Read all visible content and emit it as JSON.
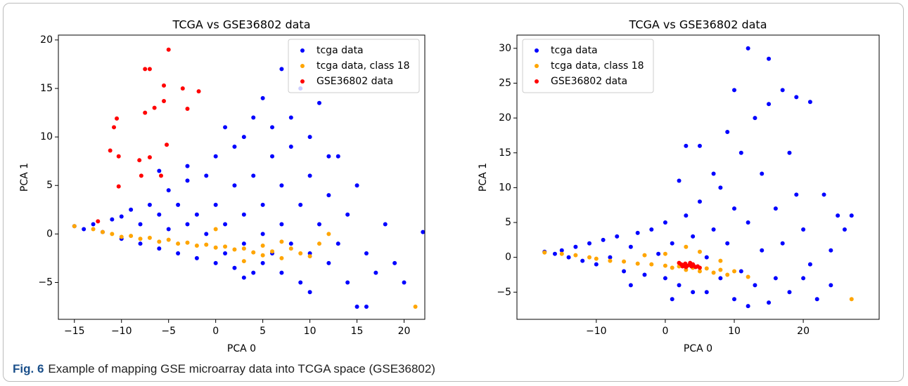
{
  "chart_data": [
    {
      "type": "scatter",
      "title": "TCGA vs GSE36802 data",
      "x_label": "PCA 0",
      "y_label": "PCA 1",
      "xlim": [
        -16.7,
        22.2
      ],
      "ylim": [
        -8.8,
        20.5
      ],
      "xticks": [
        {
          "value": -15,
          "label": "−15"
        },
        {
          "value": -10,
          "label": "−10"
        },
        {
          "value": -5,
          "label": "−5"
        },
        0,
        5,
        10,
        15,
        20
      ],
      "yticks": [
        {
          "value": -5,
          "label": "−5"
        },
        0,
        5,
        10,
        15,
        20
      ],
      "legend": "upper right",
      "series": [
        {
          "name": "tcga data",
          "color": "#0000ff",
          "x": [
            -15,
            -14,
            -13,
            -12,
            -11,
            -10,
            -10,
            -9,
            -8,
            -8,
            -7,
            -6,
            -6,
            -5,
            -5,
            -4,
            -4,
            -3,
            -3,
            -2,
            -2,
            -1,
            -1,
            0,
            0,
            0,
            1,
            1,
            2,
            2,
            2,
            3,
            3,
            3,
            4,
            4,
            4,
            5,
            5,
            5,
            5,
            6,
            6,
            6,
            7,
            7,
            7,
            7,
            8,
            8,
            8,
            9,
            9,
            9,
            10,
            10,
            10,
            11,
            11,
            12,
            12,
            13,
            13,
            14,
            14,
            15,
            15,
            16,
            17,
            18,
            19,
            20,
            22,
            -6,
            -3,
            1,
            3,
            10,
            16,
            12
          ],
          "values": [
            0.8,
            0.5,
            1,
            0.2,
            1.5,
            -0.5,
            1.8,
            2.5,
            -1,
            1,
            3,
            -1.5,
            2,
            0.5,
            4.5,
            -2,
            3,
            1,
            5.5,
            -2.5,
            2,
            6,
            0,
            -3,
            3,
            8,
            1,
            -2,
            5,
            9,
            -3.5,
            2,
            10,
            -1,
            6,
            -4,
            12,
            0,
            3,
            14,
            -3,
            8,
            -2,
            11,
            1,
            17,
            5,
            -4,
            9,
            -1,
            12,
            3,
            15,
            -5,
            6,
            -2,
            10,
            1,
            13.5,
            4,
            -3,
            8,
            -1,
            2,
            -5,
            -7.5,
            5,
            -2,
            -4,
            1,
            -3,
            -5,
            0.2,
            6.5,
            7,
            11,
            -4.5,
            -6,
            -7.5,
            8
          ]
        },
        {
          "name": "tcga data, class 18",
          "color": "#ffa500",
          "x": [
            -15,
            -13,
            -12,
            -11,
            -10,
            -9,
            -8,
            -7,
            -6,
            -5,
            -4,
            -3,
            -2,
            -1,
            0,
            0,
            1,
            2,
            3,
            4,
            5,
            5,
            6,
            7,
            8,
            9,
            10,
            11,
            12,
            21.2,
            7,
            3
          ],
          "values": [
            0.8,
            0.5,
            0.2,
            0,
            -0.3,
            -0.2,
            -0.5,
            -0.4,
            -0.8,
            -0.6,
            -1,
            -0.9,
            -1.2,
            -1.1,
            -1.4,
            0.5,
            -1.3,
            -1.6,
            -1.5,
            -1.9,
            -1.2,
            -2.2,
            -1.8,
            -2.5,
            -1.5,
            -2,
            -2.3,
            -1,
            0,
            -7.5,
            -0.8,
            -2.8
          ]
        },
        {
          "name": "GSE36802 data",
          "color": "#ff0000",
          "x": [
            -5,
            -7.5,
            -7,
            -3.5,
            -5.5,
            -1.8,
            -5.5,
            -6.5,
            -7.5,
            -3,
            -10.5,
            -10.8,
            -11.2,
            -10.3,
            -5.2,
            -7,
            -8.1,
            -7.9,
            -5.8,
            -10.3,
            -12.5
          ],
          "values": [
            19,
            17,
            17,
            15,
            15.3,
            14.7,
            13.7,
            13,
            12.5,
            12.9,
            11.9,
            11,
            8.6,
            8,
            9.2,
            7.9,
            7.6,
            6,
            6,
            4.9,
            1.3
          ]
        }
      ]
    },
    {
      "type": "scatter",
      "title": "TCGA vs GSE36802 data",
      "x_label": "PCA 0",
      "y_label": "PCA 1",
      "xlim": [
        -21.5,
        31
      ],
      "ylim": [
        -8.9,
        31.9
      ],
      "xticks": [
        {
          "value": -10,
          "label": "−10"
        },
        0,
        10,
        20
      ],
      "yticks": [
        {
          "value": -5,
          "label": "−5"
        },
        0,
        5,
        10,
        15,
        20,
        25,
        30
      ],
      "legend": "upper left",
      "series": [
        {
          "name": "tcga data",
          "color": "#0000ff",
          "x": [
            -17.5,
            -16,
            -15,
            -14,
            -13,
            -12,
            -11,
            -10,
            -9,
            -8,
            -7,
            -6,
            -5,
            -4,
            -3,
            -2,
            -1,
            0,
            0,
            1,
            2,
            2,
            3,
            3,
            4,
            4,
            5,
            5,
            6,
            6,
            7,
            7,
            8,
            8,
            9,
            9,
            10,
            10,
            10,
            11,
            11,
            12,
            12,
            13,
            13,
            14,
            14,
            15,
            15,
            16,
            16,
            17,
            17,
            18,
            18,
            19,
            19,
            20,
            21,
            21,
            22,
            23,
            24,
            24,
            25,
            26,
            27,
            20,
            15,
            12,
            1,
            -5
          ],
          "values": [
            0.8,
            0.5,
            1,
            0,
            1.5,
            -0.5,
            2,
            -1,
            2.5,
            0,
            3,
            -2,
            1.5,
            3.5,
            -2.5,
            4,
            0.5,
            -3,
            5,
            2,
            11,
            -4,
            6,
            16,
            -5,
            3,
            8,
            16,
            0,
            -5,
            12,
            4,
            10,
            -3,
            18,
            2,
            24,
            7,
            -6,
            15,
            -2,
            30,
            5,
            20,
            -4,
            12,
            1,
            28.5,
            22,
            7,
            -3,
            24,
            2,
            15,
            -5,
            9,
            23,
            4,
            -1,
            22.3,
            -6,
            9,
            1,
            -4,
            6,
            4,
            6,
            -3,
            -6.5,
            -7,
            -6,
            -4
          ]
        },
        {
          "name": "tcga data, class 18",
          "color": "#ffa500",
          "x": [
            -17.5,
            -15,
            -13,
            -11,
            -10,
            -8,
            -6,
            -4,
            -2,
            0,
            0,
            1,
            2,
            3,
            4,
            5,
            6,
            7,
            8,
            9,
            10,
            12,
            5,
            3,
            27,
            -3,
            8
          ],
          "values": [
            0.7,
            0.5,
            0.3,
            0,
            -0.2,
            -0.5,
            -0.6,
            -0.9,
            -1,
            -1.2,
            0.5,
            -1.5,
            -1.3,
            -1.8,
            -1.5,
            -2,
            -1.6,
            -2.2,
            -1.8,
            -2.5,
            -2,
            -2.8,
            0.8,
            1.5,
            -6,
            0.3,
            -0.5
          ]
        },
        {
          "name": "GSE36802 data",
          "color": "#ff0000",
          "x": [
            2,
            2.3,
            2.6,
            2.9,
            3.2,
            3.5,
            3.8,
            4.1,
            4.4,
            4.7,
            2.5,
            3,
            3.6,
            4,
            5
          ],
          "values": [
            -0.8,
            -1,
            -1.1,
            -0.9,
            -1.2,
            -1.1,
            -1.3,
            -1.2,
            -1.4,
            -1.3,
            -1.3,
            -1.4,
            -0.8,
            -1,
            -1.5
          ]
        }
      ]
    }
  ],
  "caption": {
    "label": "Fig. 6",
    "text": "Example of mapping GSE microarray data into TCGA space (GSE36802)"
  }
}
